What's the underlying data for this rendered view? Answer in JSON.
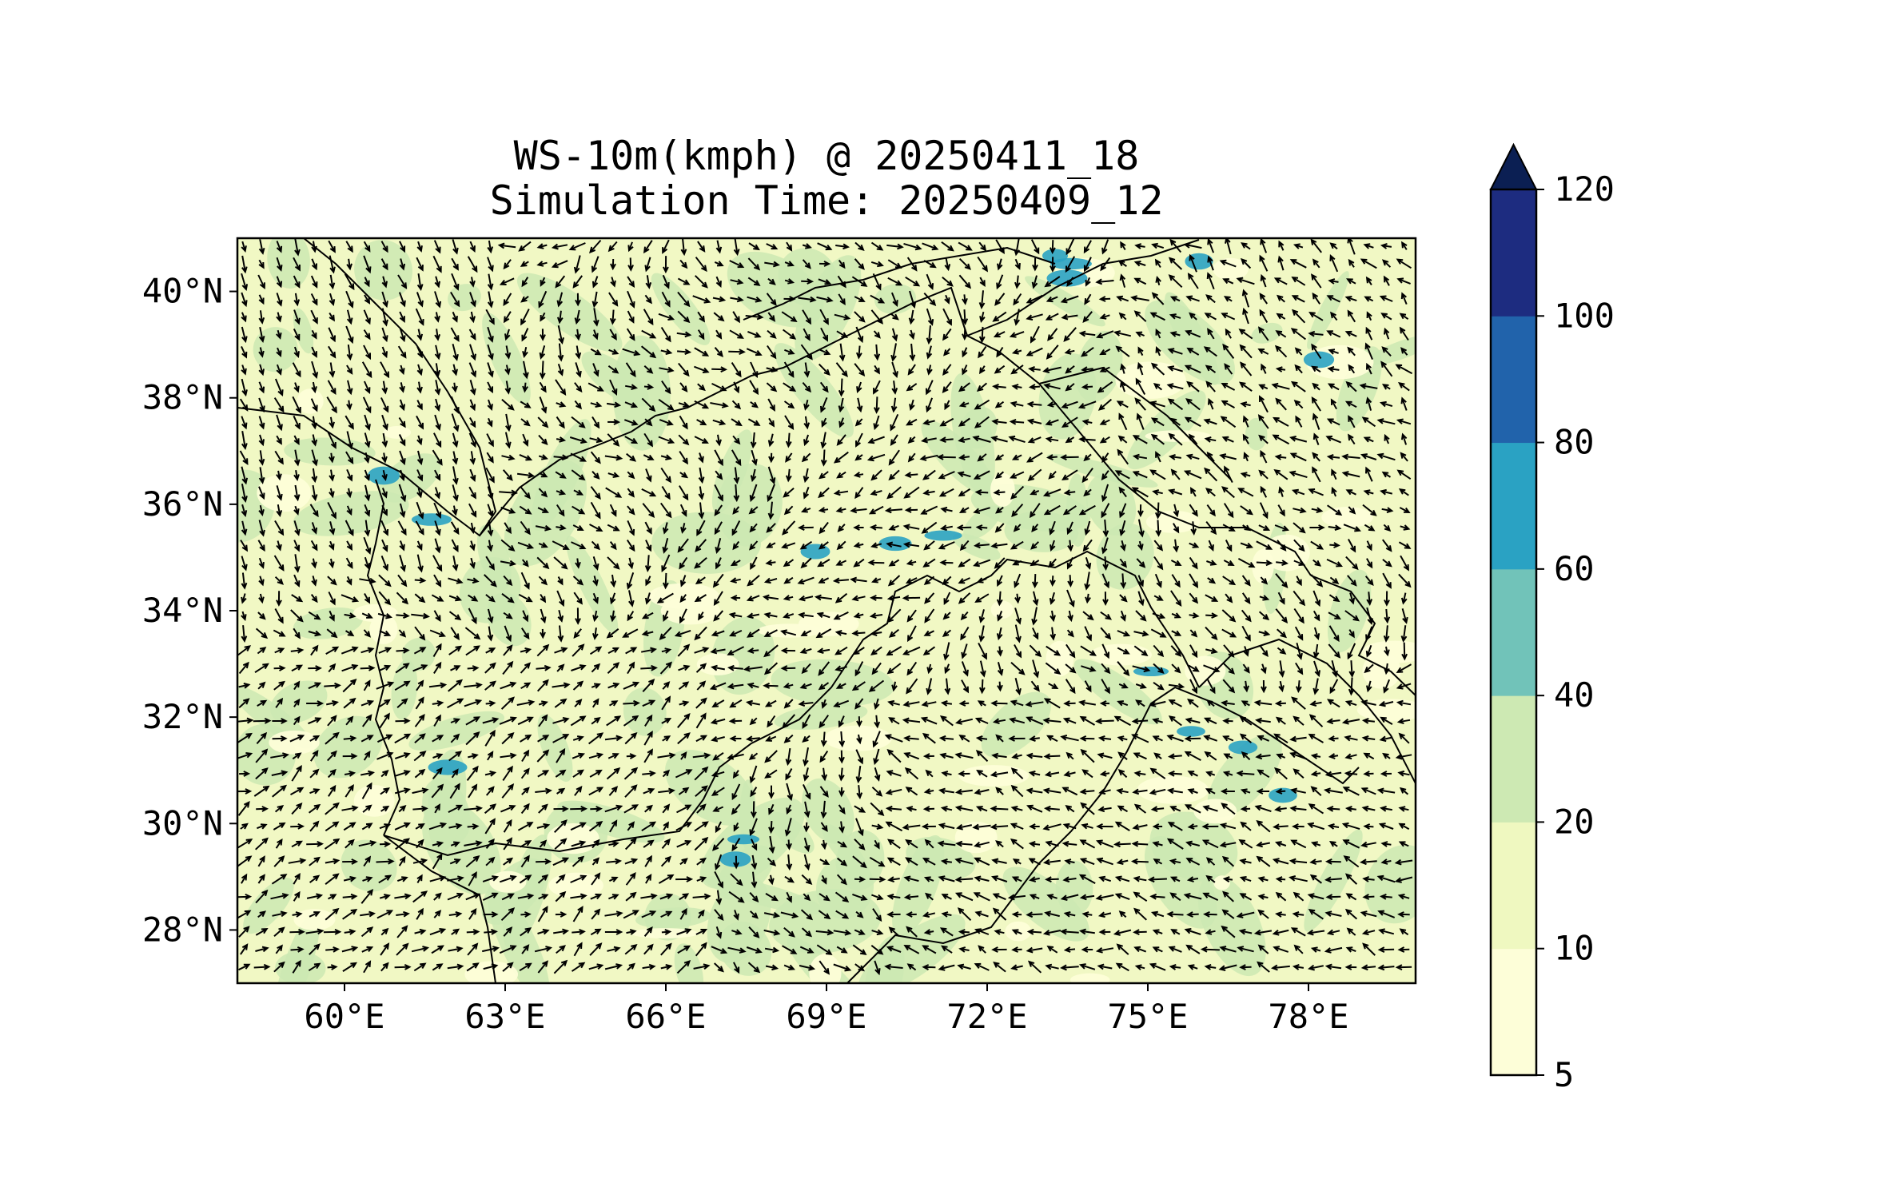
{
  "title": {
    "line1": "WS-10m(kmph) @ 20250411_18",
    "line2": "Simulation Time: 20250409_12"
  },
  "map": {
    "lon_range": [
      58.0,
      80.0
    ],
    "lat_range": [
      27.0,
      41.0
    ],
    "lon_ticks": [
      {
        "value": 60,
        "label": "60°E"
      },
      {
        "value": 63,
        "label": "63°E"
      },
      {
        "value": 66,
        "label": "66°E"
      },
      {
        "value": 69,
        "label": "69°E"
      },
      {
        "value": 72,
        "label": "72°E"
      },
      {
        "value": 75,
        "label": "75°E"
      },
      {
        "value": 78,
        "label": "78°E"
      }
    ],
    "lat_ticks": [
      {
        "value": 28,
        "label": "28°N"
      },
      {
        "value": 30,
        "label": "30°N"
      },
      {
        "value": 32,
        "label": "32°N"
      },
      {
        "value": 34,
        "label": "34°N"
      },
      {
        "value": 36,
        "label": "36°N"
      },
      {
        "value": 38,
        "label": "38°N"
      },
      {
        "value": 40,
        "label": "40°N"
      }
    ],
    "field": "10 m wind speed with wind direction arrows",
    "base_color": "#f1f8c4",
    "arrow_color": "#000000"
  },
  "colorbar": {
    "levels": [
      {
        "value": 5,
        "label": "5"
      },
      {
        "value": 10,
        "label": "10"
      },
      {
        "value": 20,
        "label": "20"
      },
      {
        "value": 40,
        "label": "40"
      },
      {
        "value": 60,
        "label": "60"
      },
      {
        "value": 80,
        "label": "80"
      },
      {
        "value": 100,
        "label": "100"
      },
      {
        "value": 120,
        "label": "120"
      }
    ],
    "colors": [
      "#fdfed8",
      "#eff8c0",
      "#cde9b3",
      "#71c3b9",
      "#2aa2c3",
      "#2163ab",
      "#1d2c80"
    ],
    "extend_color": "#0b1f53",
    "extend": "max"
  }
}
